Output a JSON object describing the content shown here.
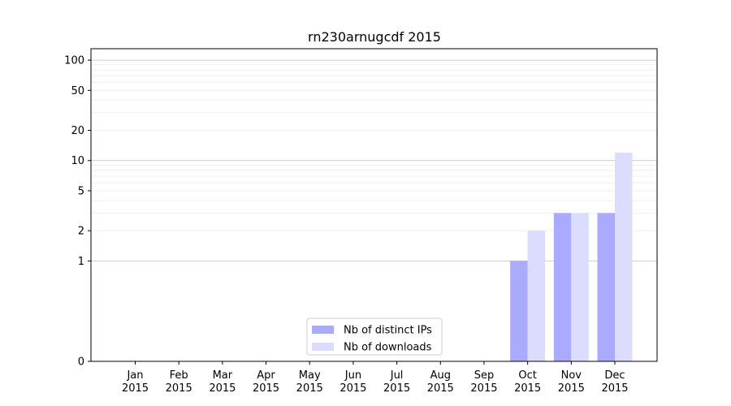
{
  "chart_data": {
    "type": "bar",
    "title": "rn230arnugcdf 2015",
    "xlabel": "",
    "ylabel": "",
    "y_scale": "symlog",
    "ylim": [
      0,
      130
    ],
    "y_ticks": [
      0,
      1,
      2,
      5,
      10,
      20,
      50,
      100
    ],
    "y_tick_labels": [
      "0",
      "1",
      "2",
      "5",
      "10",
      "20",
      "50",
      "100"
    ],
    "grid": true,
    "legend_position": "bottom-center",
    "categories": [
      "Jan",
      "Feb",
      "Mar",
      "Apr",
      "May",
      "Jun",
      "Jul",
      "Aug",
      "Sep",
      "Oct",
      "Nov",
      "Dec"
    ],
    "category_sublabel": "2015",
    "series": [
      {
        "name": "Nb of distinct IPs",
        "color": "#aaaaff",
        "values": [
          0,
          0,
          0,
          0,
          0,
          0,
          0,
          0,
          0,
          1,
          3,
          3
        ]
      },
      {
        "name": "Nb of downloads",
        "color": "#dcdcff",
        "values": [
          0,
          0,
          0,
          0,
          0,
          0,
          0,
          0,
          0,
          2,
          3,
          12
        ]
      }
    ]
  }
}
